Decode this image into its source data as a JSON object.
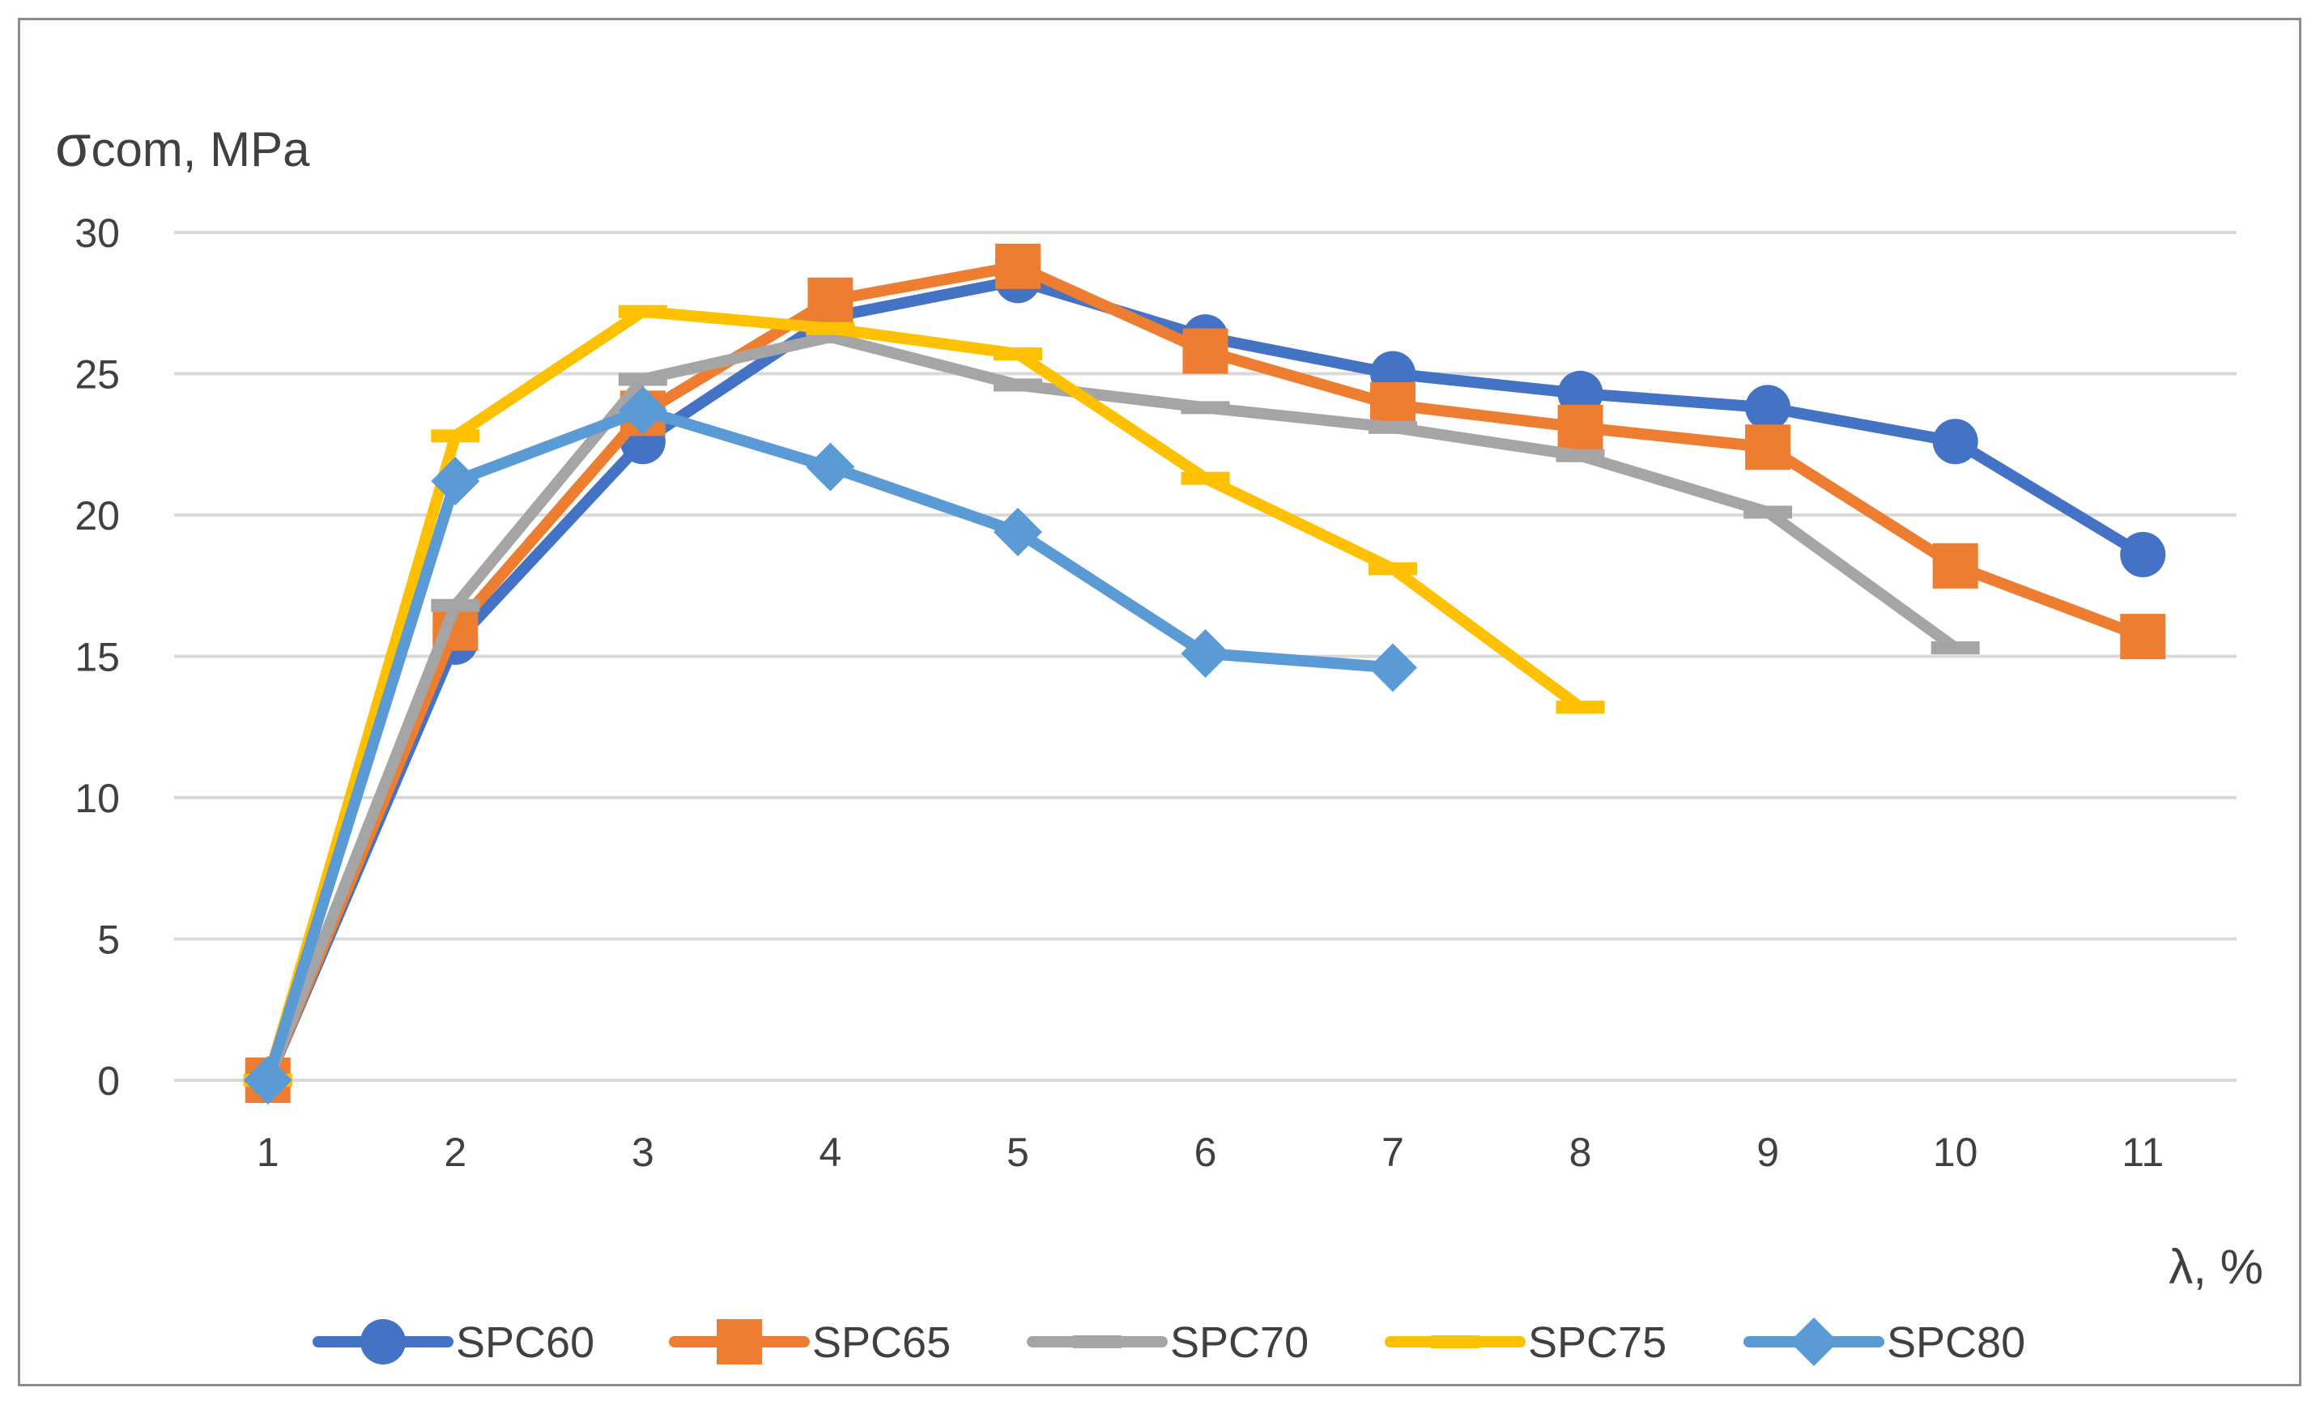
{
  "chart_data": {
    "type": "line",
    "title": "",
    "ylabel": {
      "symbol": "σ",
      "subscript": "com",
      "unit": ", MPa"
    },
    "xlabel": "λ, %",
    "categories": [
      "1",
      "2",
      "3",
      "4",
      "5",
      "6",
      "7",
      "8",
      "9",
      "10",
      "11"
    ],
    "ylim": [
      0,
      30
    ],
    "yticks": [
      0,
      5,
      10,
      15,
      20,
      25,
      30
    ],
    "grid": true,
    "legend_position": "bottom",
    "series": [
      {
        "name": "SPC60",
        "color": "#4472C4",
        "marker": "circle",
        "values": [
          0,
          15.5,
          22.6,
          27.0,
          28.3,
          26.3,
          25.0,
          24.3,
          23.8,
          22.6,
          18.6
        ]
      },
      {
        "name": "SPC65",
        "color": "#ED7D31",
        "marker": "square",
        "values": [
          0,
          16.0,
          23.6,
          27.6,
          28.8,
          25.8,
          23.9,
          23.1,
          22.4,
          18.2,
          15.7
        ]
      },
      {
        "name": "SPC70",
        "color": "#A5A5A5",
        "marker": "dash",
        "values": [
          0,
          16.8,
          24.8,
          26.3,
          24.6,
          23.8,
          23.1,
          22.1,
          20.1,
          15.3,
          null
        ]
      },
      {
        "name": "SPC75",
        "color": "#FFC000",
        "marker": "dash",
        "values": [
          0,
          22.8,
          27.2,
          26.6,
          25.7,
          21.3,
          18.1,
          13.2,
          null,
          null,
          null
        ]
      },
      {
        "name": "SPC80",
        "color": "#5B9BD5",
        "marker": "diamond",
        "values": [
          0,
          21.2,
          23.7,
          21.7,
          19.4,
          15.1,
          14.6,
          null,
          null,
          null,
          null
        ]
      }
    ]
  }
}
